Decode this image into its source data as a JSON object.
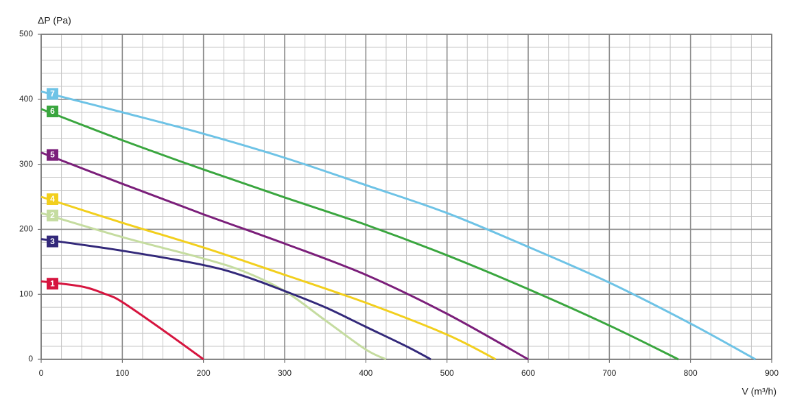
{
  "chart_data": {
    "type": "line",
    "y_label": "ΔP (Pa)",
    "x_label": "V (m³/h)",
    "xlim": [
      0,
      900
    ],
    "ylim": [
      0,
      500
    ],
    "xticks": [
      0,
      100,
      200,
      300,
      400,
      500,
      600,
      700,
      800,
      900
    ],
    "yticks": [
      0,
      100,
      200,
      300,
      400,
      500
    ],
    "grid": true,
    "x_minor_step": 25,
    "y_minor_step": 20,
    "series": [
      {
        "name": "1",
        "color": "#d6153f",
        "x": [
          0,
          50,
          80,
          100,
          150,
          200
        ],
        "values": [
          120,
          112,
          100,
          88,
          45,
          0
        ]
      },
      {
        "name": "2",
        "color": "#c5dca0",
        "x": [
          0,
          100,
          200,
          250,
          300,
          350,
          400,
          425
        ],
        "values": [
          225,
          188,
          155,
          135,
          105,
          60,
          15,
          0
        ]
      },
      {
        "name": "3",
        "color": "#33297a",
        "x": [
          0,
          100,
          200,
          250,
          300,
          350,
          400,
          450,
          480
        ],
        "values": [
          185,
          167,
          145,
          128,
          105,
          80,
          50,
          20,
          0
        ]
      },
      {
        "name": "4",
        "color": "#f2cf1d",
        "x": [
          0,
          100,
          200,
          300,
          400,
          500,
          560
        ],
        "values": [
          250,
          210,
          172,
          130,
          87,
          38,
          0
        ]
      },
      {
        "name": "5",
        "color": "#7b1f7a",
        "x": [
          0,
          100,
          200,
          300,
          400,
          500,
          600
        ],
        "values": [
          318,
          270,
          223,
          178,
          130,
          70,
          0
        ]
      },
      {
        "name": "6",
        "color": "#3aa63f",
        "x": [
          0,
          100,
          200,
          300,
          400,
          500,
          600,
          700,
          785
        ],
        "values": [
          385,
          337,
          292,
          249,
          207,
          160,
          108,
          52,
          0
        ]
      },
      {
        "name": "7",
        "color": "#6ec3e6",
        "x": [
          0,
          100,
          200,
          300,
          400,
          500,
          600,
          700,
          800,
          880
        ],
        "values": [
          412,
          380,
          347,
          310,
          268,
          225,
          173,
          118,
          55,
          0
        ]
      }
    ]
  }
}
